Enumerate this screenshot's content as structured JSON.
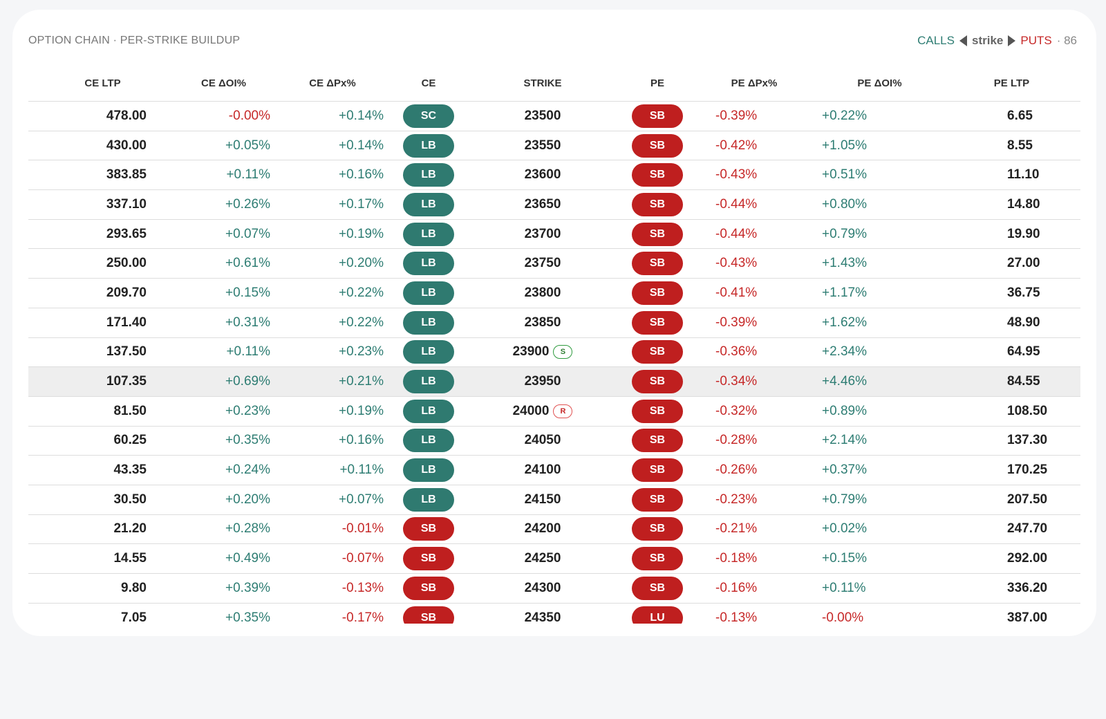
{
  "header": {
    "title": "OPTION CHAIN · PER-STRIKE BUILDUP",
    "legend_calls": "CALLS",
    "legend_strike": "strike",
    "legend_puts": "PUTS",
    "legend_count": "· 86"
  },
  "columns": [
    "CE LTP",
    "CE ΔOI%",
    "CE ΔPx%",
    "CE",
    "STRIKE",
    "PE",
    "PE ΔPx%",
    "PE ΔOI%",
    "PE LTP"
  ],
  "colors": {
    "positive": "#2e7d73",
    "negative": "#c62828",
    "green_pill": "#2f7a70",
    "red_pill": "#bf1f1f"
  },
  "rows": [
    {
      "ce_ltp": "478.00",
      "ce_doi": "-0.00%",
      "ce_dpx": "+0.14%",
      "ce": "SC",
      "ce_color": "green",
      "strike": "23500",
      "mark": "",
      "pe": "SB",
      "pe_color": "red",
      "pe_dpx": "-0.39%",
      "pe_doi": "+0.22%",
      "pe_ltp": "6.65"
    },
    {
      "ce_ltp": "430.00",
      "ce_doi": "+0.05%",
      "ce_dpx": "+0.14%",
      "ce": "LB",
      "ce_color": "green",
      "strike": "23550",
      "mark": "",
      "pe": "SB",
      "pe_color": "red",
      "pe_dpx": "-0.42%",
      "pe_doi": "+1.05%",
      "pe_ltp": "8.55"
    },
    {
      "ce_ltp": "383.85",
      "ce_doi": "+0.11%",
      "ce_dpx": "+0.16%",
      "ce": "LB",
      "ce_color": "green",
      "strike": "23600",
      "mark": "",
      "pe": "SB",
      "pe_color": "red",
      "pe_dpx": "-0.43%",
      "pe_doi": "+0.51%",
      "pe_ltp": "11.10"
    },
    {
      "ce_ltp": "337.10",
      "ce_doi": "+0.26%",
      "ce_dpx": "+0.17%",
      "ce": "LB",
      "ce_color": "green",
      "strike": "23650",
      "mark": "",
      "pe": "SB",
      "pe_color": "red",
      "pe_dpx": "-0.44%",
      "pe_doi": "+0.80%",
      "pe_ltp": "14.80"
    },
    {
      "ce_ltp": "293.65",
      "ce_doi": "+0.07%",
      "ce_dpx": "+0.19%",
      "ce": "LB",
      "ce_color": "green",
      "strike": "23700",
      "mark": "",
      "pe": "SB",
      "pe_color": "red",
      "pe_dpx": "-0.44%",
      "pe_doi": "+0.79%",
      "pe_ltp": "19.90"
    },
    {
      "ce_ltp": "250.00",
      "ce_doi": "+0.61%",
      "ce_dpx": "+0.20%",
      "ce": "LB",
      "ce_color": "green",
      "strike": "23750",
      "mark": "",
      "pe": "SB",
      "pe_color": "red",
      "pe_dpx": "-0.43%",
      "pe_doi": "+1.43%",
      "pe_ltp": "27.00"
    },
    {
      "ce_ltp": "209.70",
      "ce_doi": "+0.15%",
      "ce_dpx": "+0.22%",
      "ce": "LB",
      "ce_color": "green",
      "strike": "23800",
      "mark": "",
      "pe": "SB",
      "pe_color": "red",
      "pe_dpx": "-0.41%",
      "pe_doi": "+1.17%",
      "pe_ltp": "36.75"
    },
    {
      "ce_ltp": "171.40",
      "ce_doi": "+0.31%",
      "ce_dpx": "+0.22%",
      "ce": "LB",
      "ce_color": "green",
      "strike": "23850",
      "mark": "",
      "pe": "SB",
      "pe_color": "red",
      "pe_dpx": "-0.39%",
      "pe_doi": "+1.62%",
      "pe_ltp": "48.90"
    },
    {
      "ce_ltp": "137.50",
      "ce_doi": "+0.11%",
      "ce_dpx": "+0.23%",
      "ce": "LB",
      "ce_color": "green",
      "strike": "23900",
      "mark": "S",
      "pe": "SB",
      "pe_color": "red",
      "pe_dpx": "-0.36%",
      "pe_doi": "+2.34%",
      "pe_ltp": "64.95"
    },
    {
      "ce_ltp": "107.35",
      "ce_doi": "+0.69%",
      "ce_dpx": "+0.21%",
      "ce": "LB",
      "ce_color": "green",
      "strike": "23950",
      "mark": "",
      "pe": "SB",
      "pe_color": "red",
      "pe_dpx": "-0.34%",
      "pe_doi": "+4.46%",
      "pe_ltp": "84.55",
      "highlight": true
    },
    {
      "ce_ltp": "81.50",
      "ce_doi": "+0.23%",
      "ce_dpx": "+0.19%",
      "ce": "LB",
      "ce_color": "green",
      "strike": "24000",
      "mark": "R",
      "pe": "SB",
      "pe_color": "red",
      "pe_dpx": "-0.32%",
      "pe_doi": "+0.89%",
      "pe_ltp": "108.50"
    },
    {
      "ce_ltp": "60.25",
      "ce_doi": "+0.35%",
      "ce_dpx": "+0.16%",
      "ce": "LB",
      "ce_color": "green",
      "strike": "24050",
      "mark": "",
      "pe": "SB",
      "pe_color": "red",
      "pe_dpx": "-0.28%",
      "pe_doi": "+2.14%",
      "pe_ltp": "137.30"
    },
    {
      "ce_ltp": "43.35",
      "ce_doi": "+0.24%",
      "ce_dpx": "+0.11%",
      "ce": "LB",
      "ce_color": "green",
      "strike": "24100",
      "mark": "",
      "pe": "SB",
      "pe_color": "red",
      "pe_dpx": "-0.26%",
      "pe_doi": "+0.37%",
      "pe_ltp": "170.25"
    },
    {
      "ce_ltp": "30.50",
      "ce_doi": "+0.20%",
      "ce_dpx": "+0.07%",
      "ce": "LB",
      "ce_color": "green",
      "strike": "24150",
      "mark": "",
      "pe": "SB",
      "pe_color": "red",
      "pe_dpx": "-0.23%",
      "pe_doi": "+0.79%",
      "pe_ltp": "207.50"
    },
    {
      "ce_ltp": "21.20",
      "ce_doi": "+0.28%",
      "ce_dpx": "-0.01%",
      "ce": "SB",
      "ce_color": "red",
      "strike": "24200",
      "mark": "",
      "pe": "SB",
      "pe_color": "red",
      "pe_dpx": "-0.21%",
      "pe_doi": "+0.02%",
      "pe_ltp": "247.70"
    },
    {
      "ce_ltp": "14.55",
      "ce_doi": "+0.49%",
      "ce_dpx": "-0.07%",
      "ce": "SB",
      "ce_color": "red",
      "strike": "24250",
      "mark": "",
      "pe": "SB",
      "pe_color": "red",
      "pe_dpx": "-0.18%",
      "pe_doi": "+0.15%",
      "pe_ltp": "292.00"
    },
    {
      "ce_ltp": "9.80",
      "ce_doi": "+0.39%",
      "ce_dpx": "-0.13%",
      "ce": "SB",
      "ce_color": "red",
      "strike": "24300",
      "mark": "",
      "pe": "SB",
      "pe_color": "red",
      "pe_dpx": "-0.16%",
      "pe_doi": "+0.11%",
      "pe_ltp": "336.20"
    },
    {
      "ce_ltp": "7.05",
      "ce_doi": "+0.35%",
      "ce_dpx": "-0.17%",
      "ce": "SB",
      "ce_color": "red",
      "strike": "24350",
      "mark": "",
      "pe": "LU",
      "pe_color": "red",
      "pe_dpx": "-0.13%",
      "pe_doi": "-0.00%",
      "pe_ltp": "387.00"
    }
  ]
}
